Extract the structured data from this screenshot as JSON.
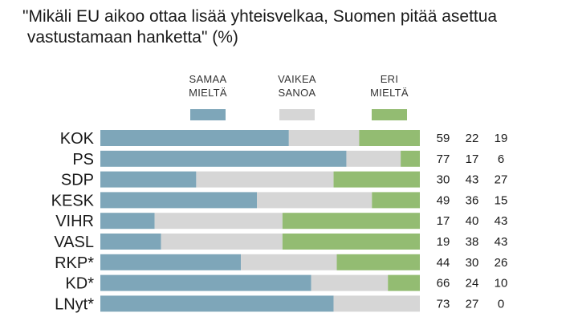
{
  "chart_data": {
    "type": "bar",
    "orientation": "horizontal",
    "stacked": true,
    "title_lines": [
      "\"Mikäli EU aikoo ottaa lisää yhteisvelkaa, Suomen pitää asettua",
      " vastustamaan hanketta\" (%)"
    ],
    "categories": [
      "KOK",
      "PS",
      "SDP",
      "KESK",
      "VIHR",
      "VASL",
      "RKP*",
      "KD*",
      "LNyt*"
    ],
    "series": [
      {
        "name_lines": [
          "SAMAA",
          "MIELTÄ"
        ],
        "color": "#7ea6b9",
        "values": [
          59,
          77,
          30,
          49,
          17,
          19,
          44,
          66,
          73
        ]
      },
      {
        "name_lines": [
          "VAIKEA",
          "SANOA"
        ],
        "color": "#d6d6d6",
        "values": [
          22,
          17,
          43,
          36,
          40,
          38,
          30,
          24,
          27
        ]
      },
      {
        "name_lines": [
          "ERI",
          "MIELTÄ"
        ],
        "color": "#93bc72",
        "values": [
          19,
          6,
          27,
          15,
          43,
          43,
          26,
          10,
          0
        ]
      }
    ],
    "xlim": [
      0,
      100
    ],
    "legend_position": "top",
    "grid": false
  }
}
